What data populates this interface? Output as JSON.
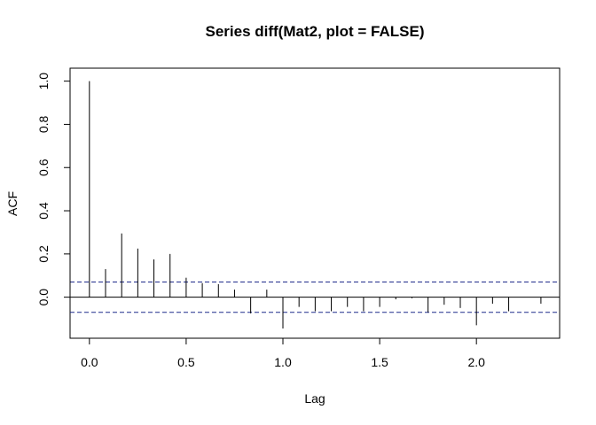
{
  "chart_data": {
    "type": "bar",
    "title": "Series  diff(Mat2, plot = FALSE)",
    "xlabel": "Lag",
    "ylabel": "ACF",
    "xlim": [
      -0.1,
      2.43
    ],
    "ylim": [
      -0.19,
      1.06
    ],
    "x_ticks": [
      0.0,
      0.5,
      1.0,
      1.5,
      2.0
    ],
    "x_tick_labels": [
      "0.0",
      "0.5",
      "1.0",
      "1.5",
      "2.0"
    ],
    "y_ticks": [
      0.0,
      0.2,
      0.4,
      0.6,
      0.8,
      1.0
    ],
    "y_tick_labels": [
      "0.0",
      "0.2",
      "0.4",
      "0.6",
      "0.8",
      "1.0"
    ],
    "confidence_bound": 0.07,
    "x": [
      0.0,
      0.0833,
      0.1667,
      0.25,
      0.3333,
      0.4167,
      0.5,
      0.5833,
      0.6667,
      0.75,
      0.8333,
      0.9167,
      1.0,
      1.0833,
      1.1667,
      1.25,
      1.3333,
      1.4167,
      1.5,
      1.5833,
      1.6667,
      1.75,
      1.8333,
      1.9167,
      2.0,
      2.0833,
      2.1667,
      2.25,
      2.3333
    ],
    "values": [
      1.0,
      0.13,
      0.295,
      0.225,
      0.175,
      0.2,
      0.09,
      0.065,
      0.06,
      0.035,
      -0.075,
      0.035,
      -0.145,
      -0.045,
      -0.065,
      -0.065,
      -0.045,
      -0.065,
      -0.045,
      -0.01,
      -0.005,
      -0.07,
      -0.035,
      -0.05,
      -0.13,
      -0.03,
      -0.065,
      0.0,
      -0.03
    ]
  }
}
